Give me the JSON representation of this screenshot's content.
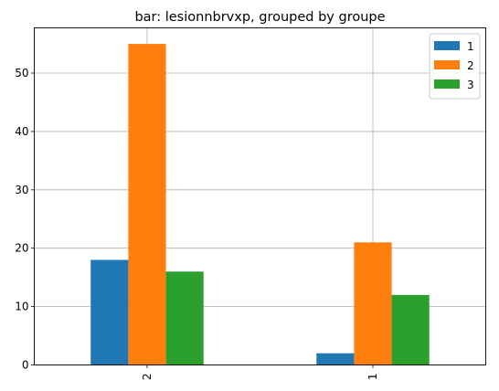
{
  "chart_data": {
    "type": "bar",
    "title": "bar: lesionnbrvxp, grouped by groupe",
    "xlabel": "",
    "ylabel": "",
    "categories": [
      "2",
      "1"
    ],
    "series": [
      {
        "name": "1",
        "values": [
          18,
          2
        ],
        "color": "#1f77b4"
      },
      {
        "name": "2",
        "values": [
          55,
          21
        ],
        "color": "#ff7f0e"
      },
      {
        "name": "3",
        "values": [
          16,
          12
        ],
        "color": "#2ca02c"
      }
    ],
    "ylim": [
      0,
      57.75
    ],
    "yticks": [
      "0",
      "10",
      "20",
      "30",
      "40",
      "50"
    ],
    "grid": true,
    "legend_position": "top-right",
    "xtick_rotation": "vertical"
  }
}
